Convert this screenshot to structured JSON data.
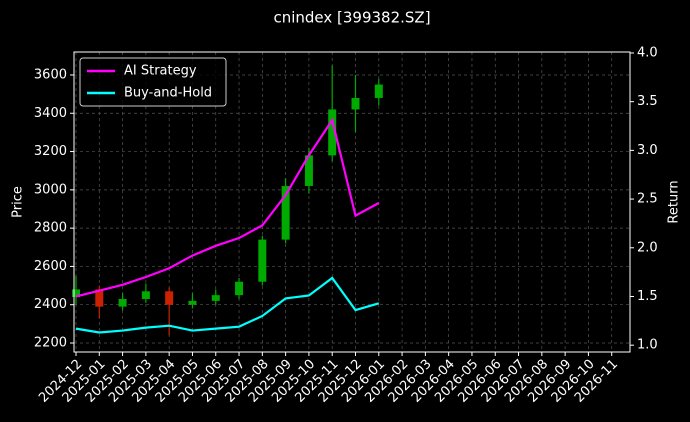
{
  "chart_data": {
    "type": "candlestick",
    "title": "cnindex [399382.SZ]",
    "ylabel": "Price",
    "y2label": "Return",
    "x": [
      "2024-12",
      "2025-01",
      "2025-02",
      "2025-03",
      "2025-04",
      "2025-05",
      "2025-06",
      "2025-07",
      "2025-08",
      "2025-09",
      "2025-10",
      "2025-11",
      "2025-12",
      "2026-01"
    ],
    "open": [
      2440,
      2480,
      2390,
      2430,
      2470,
      2400,
      2420,
      2450,
      2520,
      2740,
      3020,
      3180,
      3420,
      3480
    ],
    "high": [
      2550,
      2500,
      2460,
      2510,
      2490,
      2460,
      2480,
      2540,
      2760,
      3060,
      3220,
      3650,
      3600,
      3580
    ],
    "low": [
      2400,
      2330,
      2370,
      2410,
      2240,
      2380,
      2400,
      2430,
      2500,
      2720,
      2980,
      3150,
      3300,
      3440
    ],
    "close": [
      2480,
      2390,
      2430,
      2470,
      2400,
      2420,
      2450,
      2520,
      2740,
      3020,
      3180,
      3420,
      3480,
      3550
    ],
    "up_color": "#00aa00",
    "down_color": "#cc2200",
    "series": [
      {
        "name": "AI Strategy",
        "color": "#ff00ff",
        "axis": "y2",
        "values": [
          1.5,
          1.56,
          1.62,
          1.7,
          1.79,
          1.92,
          2.02,
          2.1,
          2.23,
          2.54,
          2.95,
          3.31,
          2.33,
          2.46
        ]
      },
      {
        "name": "Buy-and-Hold",
        "color": "#00ffff",
        "axis": "y2",
        "values": [
          1.17,
          1.13,
          1.15,
          1.18,
          1.2,
          1.15,
          1.17,
          1.19,
          1.3,
          1.48,
          1.51,
          1.69,
          1.36,
          1.43
        ]
      }
    ],
    "xlim": [
      "2024-12",
      "2026-12"
    ],
    "xticks": [
      "2024-12",
      "2025-01",
      "2025-02",
      "2025-03",
      "2025-04",
      "2025-05",
      "2025-06",
      "2025-07",
      "2025-08",
      "2025-09",
      "2025-10",
      "2025-11",
      "2025-12",
      "2026-01",
      "2026-02",
      "2026-03",
      "2026-04",
      "2026-05",
      "2026-06",
      "2026-07",
      "2026-08",
      "2026-09",
      "2026-10",
      "2026-11"
    ],
    "ylim": [
      2153,
      3720
    ],
    "yticks": [
      2200,
      2400,
      2600,
      2800,
      3000,
      3200,
      3400,
      3600
    ],
    "y2lim": [
      0.93,
      4.01
    ],
    "y2ticks": [
      {
        "value": 1,
        "label": "1.0"
      },
      1.5,
      {
        "value": 2,
        "label": "2.0"
      },
      2.5,
      {
        "value": 3,
        "label": "3.0"
      },
      3.5,
      {
        "value": 4,
        "label": "4.0"
      }
    ],
    "grid": true,
    "legend": "upper left"
  }
}
